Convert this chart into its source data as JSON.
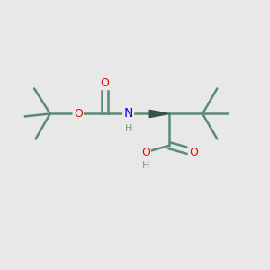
{
  "background_color": "#e8e8e8",
  "bond_color": "#5a8a78",
  "bond_width": 1.8,
  "wedge_color": "#3a5048",
  "atom_colors": {
    "O": "#dd1100",
    "N": "#1100ee",
    "H": "#7a9a8a",
    "C": "#5a8a78"
  },
  "fig_size": [
    3.0,
    3.0
  ],
  "dpi": 100
}
